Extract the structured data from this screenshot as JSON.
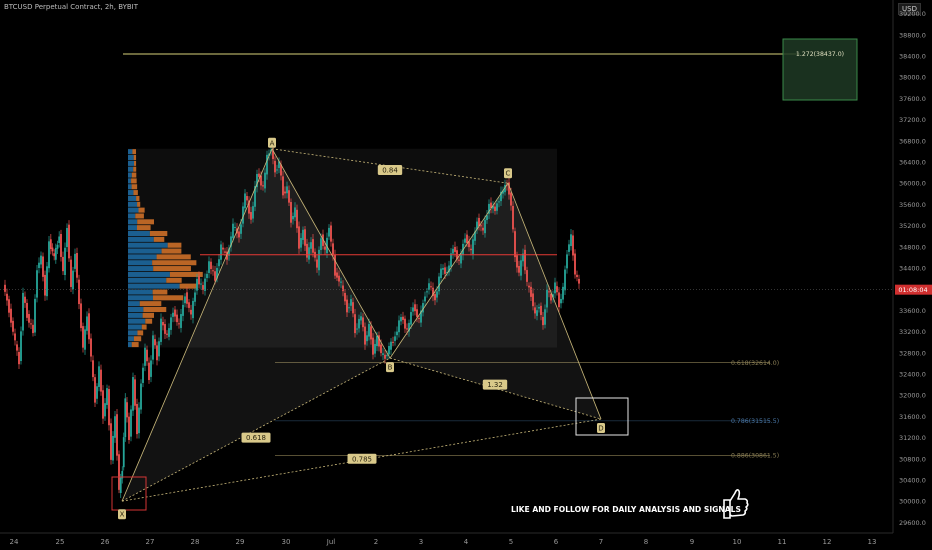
{
  "header": {
    "title": "BTCUSD Perpetual Contract, 2h, BYBIT",
    "currency": "USD"
  },
  "colors": {
    "background": "#000000",
    "up": "#26a69a",
    "down": "#ef5350",
    "harmonic": "#c9b87a",
    "harmonic_label_bg": "#d9c98a",
    "vp_up": "#1e6fa8",
    "vp_down": "#d9762a",
    "poc": "#e53935",
    "target_box": "#3a8a4a",
    "fib_line": "#c9b87a",
    "fib_mid": "#4a78a8"
  },
  "chart_data": {
    "type": "candlestick",
    "title": "BTCUSD Perpetual Contract, 2h, BYBIT",
    "ylim": [
      29400,
      39400
    ],
    "y_ticks": [
      29600,
      30000,
      30400,
      30800,
      31200,
      31600,
      32000,
      32400,
      32800,
      33200,
      33600,
      34000,
      34400,
      34800,
      35200,
      35600,
      36000,
      36400,
      36800,
      37200,
      37600,
      38000,
      38400,
      38800,
      39200
    ],
    "y_tick_labels": [
      "29600.0",
      "30000.0",
      "30400.0",
      "30800.0",
      "31200.0",
      "31600.0",
      "32000.0",
      "32400.0",
      "32800.0",
      "33200.0",
      "33600.0",
      "34000.0",
      "34400.0",
      "34800.0",
      "35200.0",
      "35600.0",
      "36000.0",
      "36400.0",
      "36800.0",
      "37200.0",
      "37600.0",
      "38000.0",
      "38400.0",
      "38800.0",
      "39200.0"
    ],
    "x_ticks": [
      {
        "label": "24",
        "pos": 14
      },
      {
        "label": "25",
        "pos": 60
      },
      {
        "label": "26",
        "pos": 105
      },
      {
        "label": "27",
        "pos": 150
      },
      {
        "label": "28",
        "pos": 195
      },
      {
        "label": "29",
        "pos": 240
      },
      {
        "label": "30",
        "pos": 286
      },
      {
        "label": "Jul",
        "pos": 331
      },
      {
        "label": "2",
        "pos": 376
      },
      {
        "label": "3",
        "pos": 421
      },
      {
        "label": "4",
        "pos": 466
      },
      {
        "label": "5",
        "pos": 511
      },
      {
        "label": "6",
        "pos": 556
      },
      {
        "label": "7",
        "pos": 601
      },
      {
        "label": "8",
        "pos": 646
      },
      {
        "label": "9",
        "pos": 692
      },
      {
        "label": "10",
        "pos": 737
      },
      {
        "label": "11",
        "pos": 782
      },
      {
        "label": "12",
        "pos": 827
      },
      {
        "label": "13",
        "pos": 872
      }
    ],
    "x_domain": [
      0,
      890
    ],
    "price_path": [
      [
        4,
        34100
      ],
      [
        10,
        33600
      ],
      [
        16,
        33000
      ],
      [
        20,
        32600
      ],
      [
        24,
        33900
      ],
      [
        28,
        33500
      ],
      [
        34,
        33200
      ],
      [
        38,
        34400
      ],
      [
        42,
        34600
      ],
      [
        46,
        33900
      ],
      [
        50,
        34900
      ],
      [
        55,
        34600
      ],
      [
        60,
        35000
      ],
      [
        64,
        34300
      ],
      [
        68,
        35200
      ],
      [
        72,
        34000
      ],
      [
        76,
        34700
      ],
      [
        80,
        33700
      ],
      [
        84,
        32900
      ],
      [
        88,
        33500
      ],
      [
        92,
        32700
      ],
      [
        96,
        31900
      ],
      [
        100,
        32500
      ],
      [
        104,
        31600
      ],
      [
        108,
        32100
      ],
      [
        112,
        30800
      ],
      [
        116,
        31600
      ],
      [
        120,
        30200
      ],
      [
        123,
        30600
      ],
      [
        126,
        31900
      ],
      [
        130,
        31200
      ],
      [
        134,
        32300
      ],
      [
        138,
        31300
      ],
      [
        142,
        32200
      ],
      [
        146,
        32900
      ],
      [
        150,
        32300
      ],
      [
        154,
        33100
      ],
      [
        158,
        32700
      ],
      [
        162,
        33400
      ],
      [
        168,
        33100
      ],
      [
        174,
        33600
      ],
      [
        180,
        33300
      ],
      [
        186,
        33900
      ],
      [
        192,
        33500
      ],
      [
        198,
        34200
      ],
      [
        204,
        34000
      ],
      [
        210,
        34500
      ],
      [
        216,
        34200
      ],
      [
        222,
        34800
      ],
      [
        228,
        34600
      ],
      [
        234,
        35200
      ],
      [
        240,
        35000
      ],
      [
        246,
        35800
      ],
      [
        252,
        35300
      ],
      [
        258,
        36200
      ],
      [
        264,
        35900
      ],
      [
        268,
        36500
      ],
      [
        272,
        36650
      ],
      [
        276,
        36200
      ],
      [
        280,
        36400
      ],
      [
        284,
        35800
      ],
      [
        288,
        35900
      ],
      [
        292,
        35300
      ],
      [
        296,
        35500
      ],
      [
        300,
        34800
      ],
      [
        304,
        35100
      ],
      [
        308,
        34600
      ],
      [
        312,
        34900
      ],
      [
        318,
        34400
      ],
      [
        322,
        35000
      ],
      [
        326,
        34700
      ],
      [
        330,
        35200
      ],
      [
        336,
        34300
      ],
      [
        342,
        34100
      ],
      [
        348,
        33600
      ],
      [
        352,
        33800
      ],
      [
        356,
        33200
      ],
      [
        362,
        33500
      ],
      [
        366,
        33000
      ],
      [
        370,
        33300
      ],
      [
        374,
        32800
      ],
      [
        378,
        33100
      ],
      [
        382,
        32800
      ],
      [
        386,
        32700
      ],
      [
        390,
        32900
      ],
      [
        396,
        33100
      ],
      [
        402,
        33500
      ],
      [
        408,
        33200
      ],
      [
        414,
        33700
      ],
      [
        420,
        33400
      ],
      [
        426,
        33900
      ],
      [
        430,
        34100
      ],
      [
        436,
        33800
      ],
      [
        442,
        34400
      ],
      [
        448,
        34300
      ],
      [
        454,
        34800
      ],
      [
        460,
        34500
      ],
      [
        466,
        35000
      ],
      [
        472,
        34700
      ],
      [
        478,
        35300
      ],
      [
        484,
        35100
      ],
      [
        490,
        35600
      ],
      [
        496,
        35500
      ],
      [
        502,
        35800
      ],
      [
        508,
        36000
      ],
      [
        512,
        35600
      ],
      [
        516,
        34600
      ],
      [
        520,
        34300
      ],
      [
        524,
        34700
      ],
      [
        528,
        34100
      ],
      [
        532,
        33900
      ],
      [
        536,
        33500
      ],
      [
        540,
        33700
      ],
      [
        544,
        33300
      ],
      [
        548,
        34000
      ],
      [
        552,
        33800
      ],
      [
        556,
        34100
      ],
      [
        560,
        33700
      ],
      [
        564,
        34000
      ],
      [
        568,
        34700
      ],
      [
        572,
        35000
      ],
      [
        576,
        34300
      ],
      [
        580,
        34100
      ]
    ],
    "volume_profile": {
      "x_left": 128,
      "price_top": 36650,
      "price_bottom": 32900,
      "rows": 34
    },
    "poc_price": 34650,
    "harmonic_pattern": {
      "points": {
        "X": [
          122,
          30000
        ],
        "A": [
          272,
          36650
        ],
        "B": [
          390,
          32700
        ],
        "C": [
          508,
          36000
        ],
        "D": [
          601,
          31550
        ]
      },
      "point_labels": [
        "X",
        "A",
        "B",
        "C",
        "D"
      ],
      "ratios": [
        {
          "label": "0.618",
          "at": [
            256,
            31200
          ]
        },
        {
          "label": "0.84",
          "at": [
            390,
            36250
          ]
        },
        {
          "label": "1.32",
          "at": [
            495,
            32200
          ]
        },
        {
          "label": "0.785",
          "at": [
            362,
            30800
          ]
        }
      ]
    },
    "fib_levels": [
      {
        "label": "0.618(32614.0)",
        "price": 32614,
        "x_start": 275
      },
      {
        "label": "0.786(31515.5)",
        "price": 31515.5,
        "x_start": 275
      },
      {
        "label": "0.886(30861.5)",
        "price": 30861.5,
        "x_start": 275
      }
    ],
    "target": {
      "label": "1.272(38437.0)",
      "price": 38437,
      "line_x_start": 123
    },
    "current_price": 33991,
    "current_price_label": "01:08:04"
  },
  "annotation": {
    "text": "LIKE AND FOLLOW FOR DAILY ANALYSIS AND SIGNALS"
  }
}
